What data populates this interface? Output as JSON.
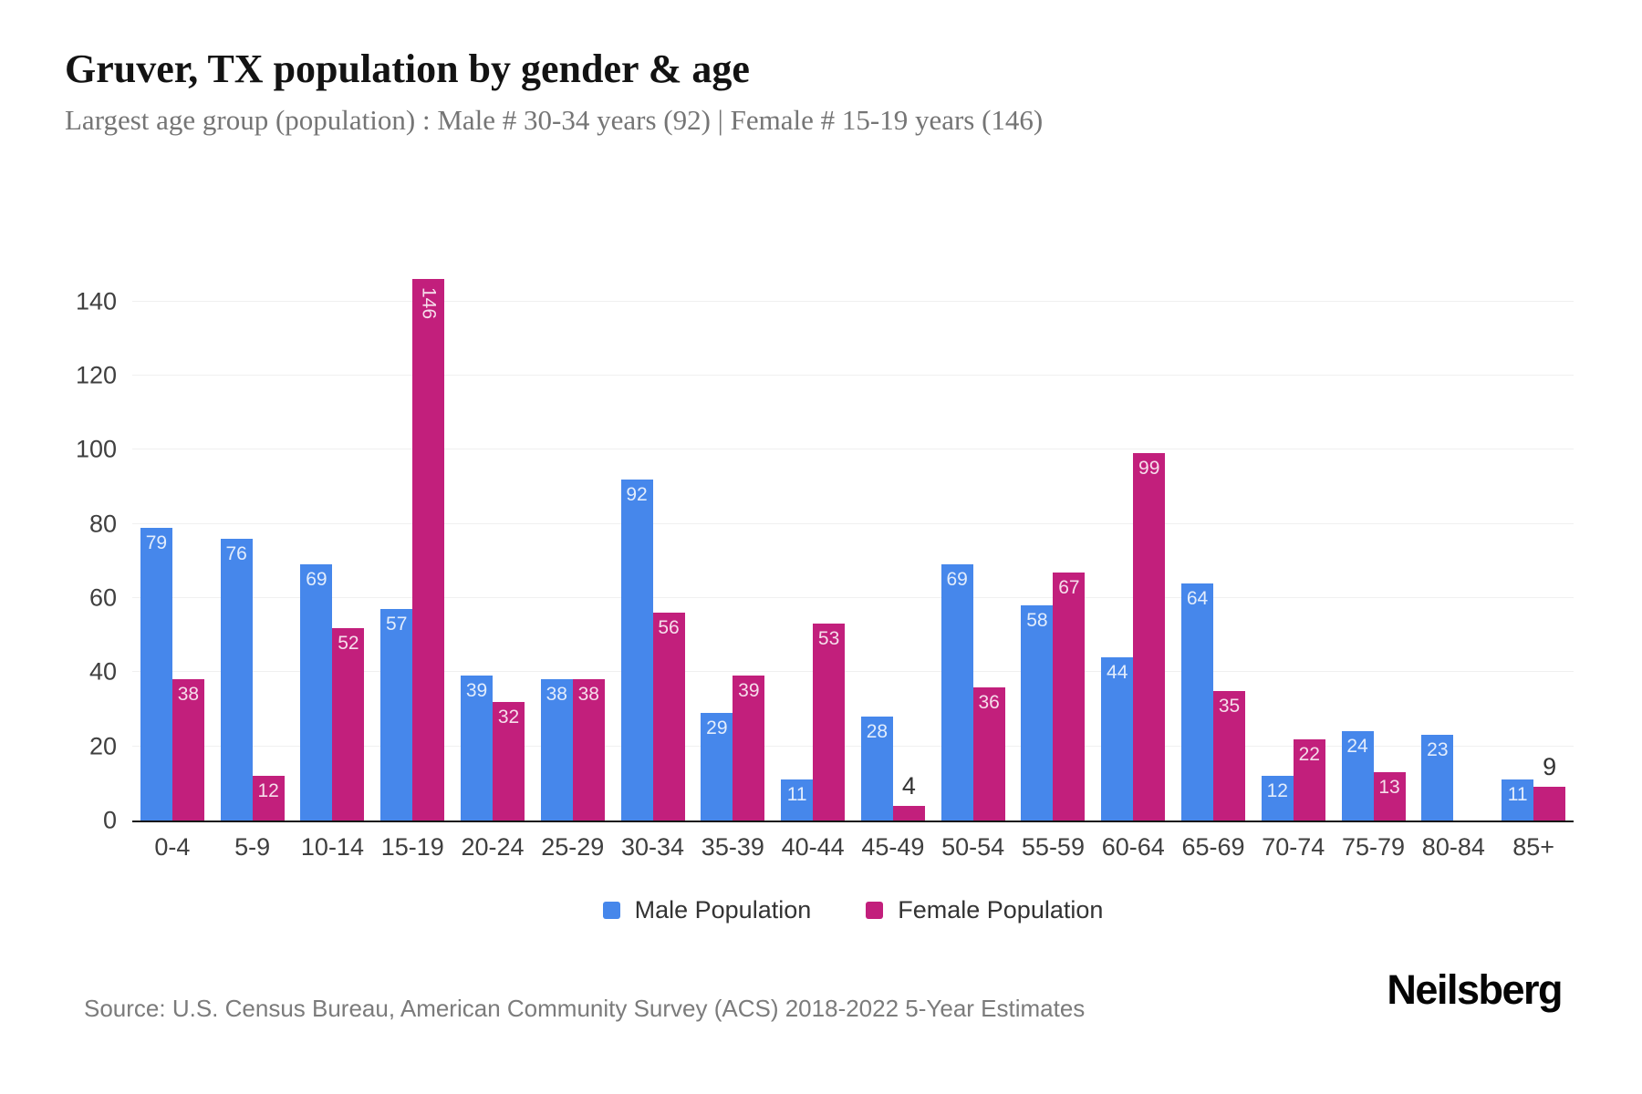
{
  "chart_data": {
    "type": "bar",
    "title": "Gruver, TX population by gender & age",
    "subtitle": "Largest age group (population) : Male # 30-34 years (92) | Female # 15-19 years (146)",
    "categories": [
      "0-4",
      "5-9",
      "10-14",
      "15-19",
      "20-24",
      "25-29",
      "30-34",
      "35-39",
      "40-44",
      "45-49",
      "50-54",
      "55-59",
      "60-64",
      "65-69",
      "70-74",
      "75-79",
      "80-84",
      "85+"
    ],
    "series": [
      {
        "name": "Male Population",
        "color": "#4687EB",
        "values": [
          79,
          76,
          69,
          57,
          39,
          38,
          92,
          29,
          11,
          28,
          69,
          58,
          44,
          64,
          12,
          24,
          23,
          11
        ]
      },
      {
        "name": "Female Population",
        "color": "#C21F7C",
        "values": [
          38,
          12,
          52,
          146,
          32,
          38,
          56,
          39,
          53,
          4,
          36,
          67,
          99,
          35,
          22,
          13,
          0,
          9
        ]
      }
    ],
    "xlabel": "",
    "ylabel": "",
    "ylim": [
      0,
      150
    ],
    "yticks": [
      0,
      20,
      40,
      60,
      80,
      100,
      120,
      140
    ],
    "grid": true,
    "legend_position": "bottom"
  },
  "footer": {
    "source": "Source: U.S. Census Bureau, American Community Survey (ACS) 2018-2022 5-Year Estimates",
    "brand": "Neilsberg"
  }
}
